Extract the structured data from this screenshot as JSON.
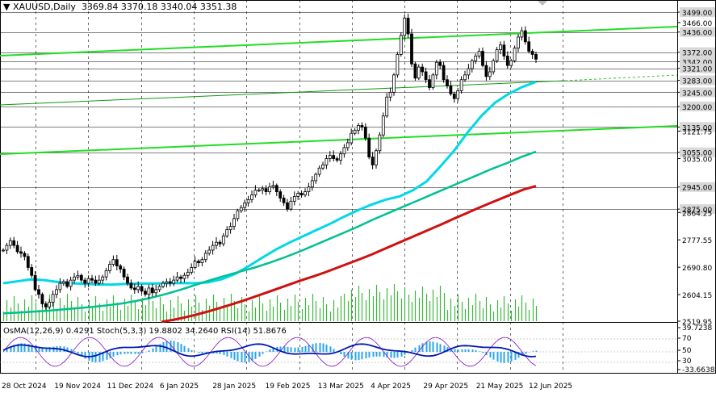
{
  "chart_data": {
    "type": "candlestick",
    "symbol": "XAUUSD",
    "timeframe": "Daily",
    "ohlc_label": "3369.84 3370.18 3340.04 3351.38",
    "price_axis": {
      "min": 2519.95,
      "max": 3517.0,
      "tick_labels": [
        "3499.00",
        "3466.00",
        "3436.00",
        "3372.00",
        "3342.00",
        "3321.00",
        "3283.00",
        "3245.00",
        "3200.00",
        "3135.00",
        "3121.75",
        "3055.00",
        "3035.00",
        "2945.00",
        "2875.00",
        "2864.25",
        "2777.55",
        "2690.80",
        "2604.15",
        "2519.95"
      ],
      "highlighted_levels": [
        3499.0,
        3436.0,
        3372.0,
        3342.0,
        3321.0,
        3283.0,
        3245.0,
        3200.0,
        3135.0,
        3055.0,
        2945.0,
        2875.0
      ]
    },
    "time_axis": {
      "labels": [
        "28 Oct 2024",
        "19 Nov 2024",
        "11 Dec 2024",
        "6 Jan 2025",
        "28 Jan 2025",
        "19 Feb 2025",
        "13 Mar 2025",
        "4 Apr 2025",
        "29 Apr 2025",
        "21 May 2025",
        "12 Jun 2025"
      ]
    },
    "close_series": [
      2745,
      2760,
      2775,
      2760,
      2740,
      2735,
      2725,
      2690,
      2665,
      2620,
      2605,
      2575,
      2565,
      2580,
      2605,
      2620,
      2640,
      2645,
      2630,
      2650,
      2660,
      2665,
      2650,
      2640,
      2655,
      2650,
      2640,
      2650,
      2660,
      2680,
      2700,
      2715,
      2695,
      2685,
      2660,
      2640,
      2625,
      2620,
      2630,
      2615,
      2605,
      2625,
      2610,
      2620,
      2630,
      2640,
      2645,
      2640,
      2650,
      2660,
      2655,
      2665,
      2675,
      2690,
      2710,
      2705,
      2715,
      2735,
      2745,
      2760,
      2770,
      2765,
      2790,
      2810,
      2820,
      2845,
      2870,
      2880,
      2895,
      2905,
      2920,
      2935,
      2935,
      2940,
      2930,
      2945,
      2950,
      2930,
      2910,
      2895,
      2875,
      2900,
      2915,
      2925,
      2920,
      2930,
      2945,
      2965,
      2985,
      3005,
      3015,
      3035,
      3045,
      3035,
      3030,
      3050,
      3070,
      3085,
      3115,
      3125,
      3140,
      3135,
      3100,
      3040,
      3015,
      3060,
      3110,
      3170,
      3230,
      3245,
      3300,
      3365,
      3425,
      3480,
      3430,
      3335,
      3290,
      3325,
      3310,
      3285,
      3260,
      3300,
      3340,
      3330,
      3285,
      3265,
      3240,
      3225,
      3250,
      3285,
      3300,
      3320,
      3345,
      3360,
      3375,
      3330,
      3295,
      3310,
      3345,
      3380,
      3395,
      3360,
      3330,
      3345,
      3385,
      3420,
      3440,
      3405,
      3375,
      3365,
      3350
    ],
    "moving_averages": [
      {
        "color": "#00d8e8",
        "values": [
          2640,
          2646,
          2652,
          2650,
          2644,
          2640,
          2638,
          2636,
          2636,
          2638,
          2639,
          2639,
          2640,
          2641,
          2640,
          2643,
          2653,
          2670,
          2695,
          2722,
          2748,
          2770,
          2790,
          2810,
          2830,
          2852,
          2872,
          2890,
          2905,
          2915,
          2935,
          2963,
          3010,
          3060,
          3118,
          3170,
          3212,
          3240,
          3262,
          3278
        ]
      },
      {
        "color": "#00c090",
        "values": [
          2545,
          2547,
          2550,
          2553,
          2557,
          2561,
          2565,
          2570,
          2576,
          2584,
          2594,
          2606,
          2620,
          2635,
          2650,
          2664,
          2677,
          2690,
          2705,
          2722,
          2740,
          2760,
          2780,
          2800,
          2820,
          2842,
          2862,
          2882,
          2902,
          2922,
          2942,
          2962,
          2982,
          3002,
          3020,
          3040,
          3057
        ]
      },
      {
        "color": "#d01010",
        "values": [
          2518,
          2524,
          2532,
          2541,
          2551,
          2562,
          2573,
          2585,
          2598,
          2611,
          2624,
          2637,
          2650,
          2662,
          2675,
          2689,
          2703,
          2717,
          2732,
          2748,
          2764,
          2780,
          2796,
          2812,
          2828,
          2845,
          2861,
          2877,
          2893,
          2908,
          2923,
          2938,
          2948
        ]
      }
    ],
    "indicators": {
      "label": "OsMA(12,26,9) 0.4291  Stoch(5,3,3) 19.8802 34.2640  RSI(14) 51.8676",
      "axis_labels": [
        "39.7238",
        "70",
        "50",
        "30",
        "-33.6638"
      ]
    }
  }
}
